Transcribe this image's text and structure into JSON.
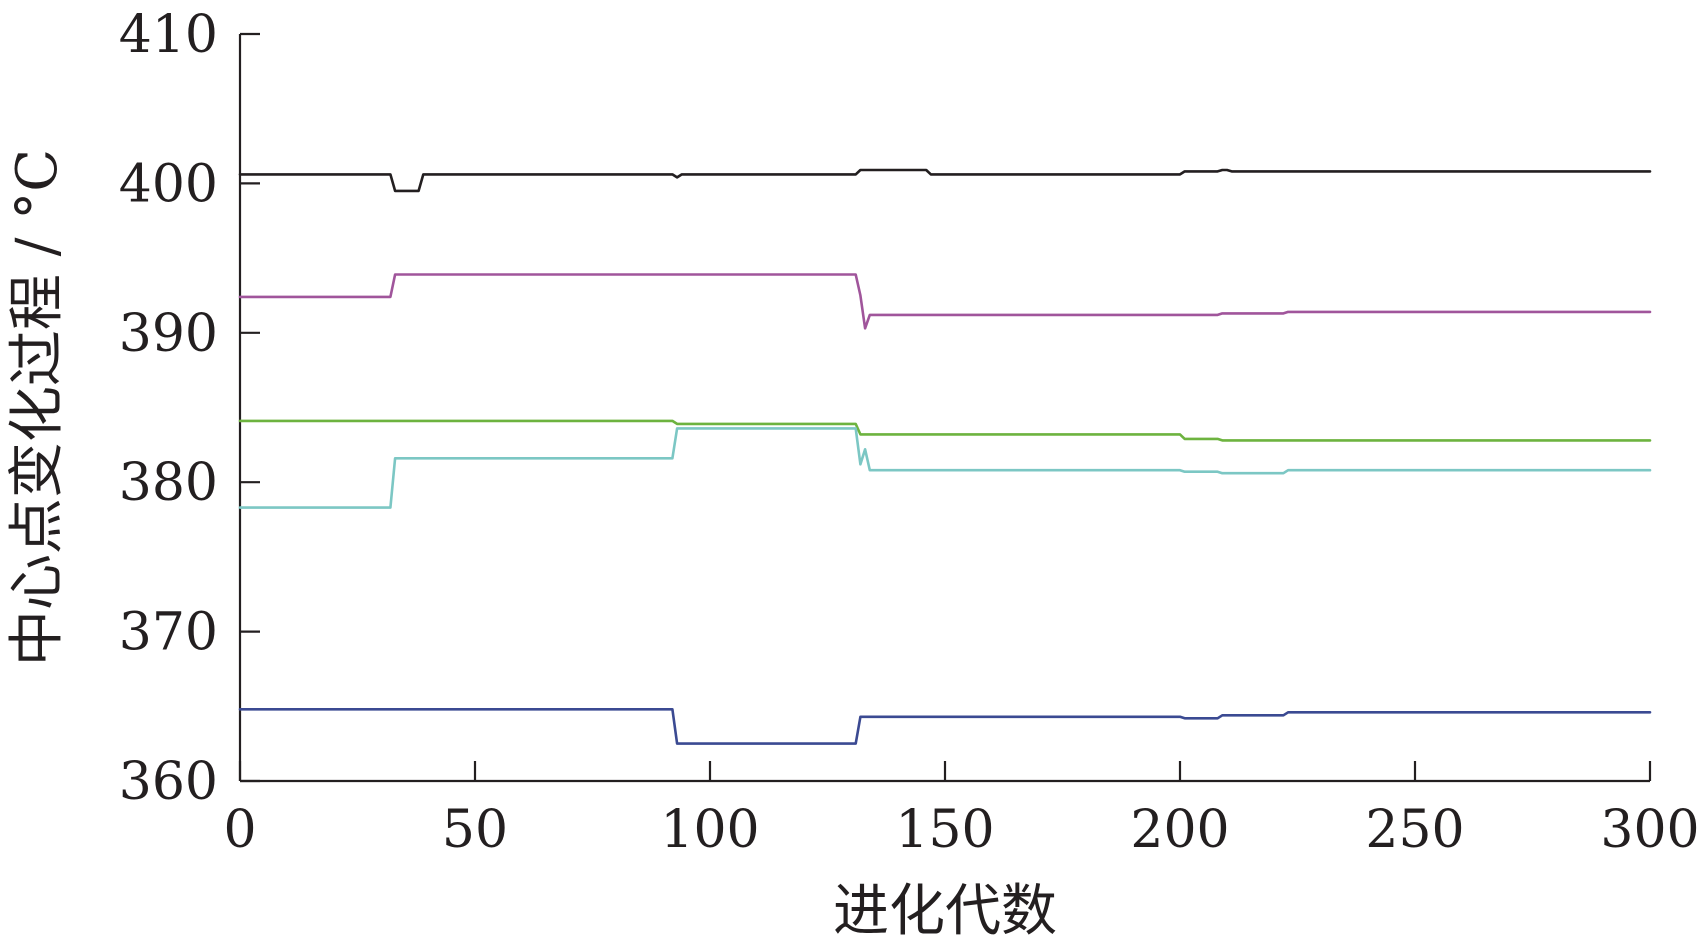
{
  "chart_data": {
    "type": "line",
    "title": "",
    "xlabel": "进化代数",
    "ylabel": "中心点变化过程 / °C",
    "xlim": [
      0,
      300
    ],
    "ylim": [
      360,
      410
    ],
    "xticks": [
      0,
      50,
      100,
      150,
      200,
      250,
      300
    ],
    "yticks": [
      360,
      370,
      380,
      390,
      400,
      410
    ],
    "xtick_labels": [
      "0",
      "50",
      "100",
      "150",
      "200",
      "250",
      "300"
    ],
    "ytick_labels": [
      "360",
      "370",
      "380",
      "390",
      "400",
      "410"
    ],
    "grid": false,
    "legend": "none",
    "series": [
      {
        "color": "#231f20",
        "x": [
          0,
          32,
          33,
          38,
          39,
          92,
          93,
          94,
          131,
          132,
          146,
          147,
          200,
          201,
          208,
          209,
          210,
          211,
          300
        ],
        "y": [
          400.6,
          400.6,
          399.5,
          399.5,
          400.6,
          400.6,
          400.4,
          400.6,
          400.6,
          400.9,
          400.9,
          400.6,
          400.6,
          400.8,
          400.8,
          400.9,
          400.9,
          400.8,
          400.8
        ]
      },
      {
        "color": "#a0559b",
        "x": [
          0,
          32,
          33,
          131,
          132,
          133,
          134,
          208,
          209,
          222,
          223,
          300
        ],
        "y": [
          392.4,
          392.4,
          393.9,
          393.9,
          392.5,
          390.3,
          391.2,
          391.2,
          391.3,
          391.3,
          391.4,
          391.4
        ]
      },
      {
        "color": "#6db33f",
        "x": [
          0,
          92,
          93,
          131,
          132,
          200,
          201,
          208,
          209,
          222,
          223,
          300
        ],
        "y": [
          384.1,
          384.1,
          383.9,
          383.9,
          383.2,
          383.2,
          382.9,
          382.9,
          382.8,
          382.8,
          382.8,
          382.8
        ]
      },
      {
        "color": "#7cc7c4",
        "x": [
          0,
          32,
          33,
          92,
          93,
          131,
          132,
          133,
          134,
          200,
          201,
          208,
          209,
          222,
          223,
          300
        ],
        "y": [
          378.3,
          378.3,
          381.6,
          381.6,
          383.6,
          383.6,
          381.2,
          382.2,
          380.8,
          380.8,
          380.7,
          380.7,
          380.6,
          380.6,
          380.8,
          380.8
        ]
      },
      {
        "color": "#3b4a92",
        "x": [
          0,
          92,
          93,
          131,
          132,
          200,
          201,
          208,
          209,
          222,
          223,
          300
        ],
        "y": [
          364.8,
          364.8,
          362.5,
          362.5,
          364.3,
          364.3,
          364.2,
          364.2,
          364.4,
          364.4,
          364.6,
          364.6
        ]
      }
    ]
  }
}
